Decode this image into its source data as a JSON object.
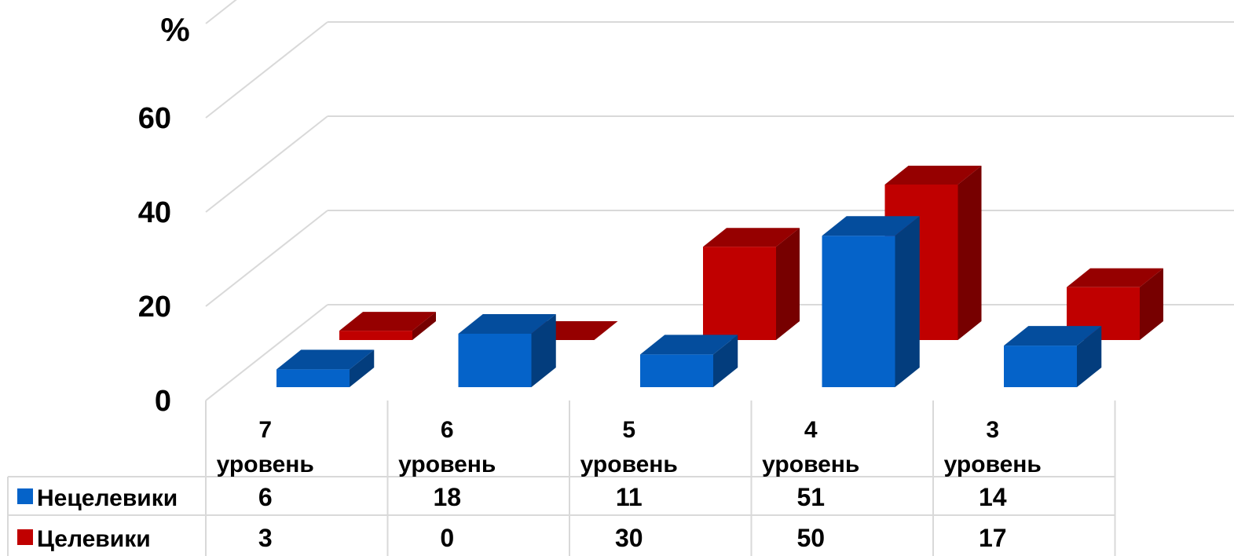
{
  "chart_data": {
    "type": "bar",
    "y_unit_label": "%",
    "categories": [
      {
        "line1": "7",
        "line2": "уровень"
      },
      {
        "line1": "6",
        "line2": "уровень"
      },
      {
        "line1": "5",
        "line2": "уровень"
      },
      {
        "line1": "4",
        "line2": "уровень"
      },
      {
        "line1": "3",
        "line2": "уровень"
      }
    ],
    "series": [
      {
        "name": "Нецелевики",
        "color": "#0563C9",
        "values": [
          6,
          18,
          11,
          51,
          14
        ]
      },
      {
        "name": "Целевики",
        "color": "#C00000",
        "values": [
          3,
          0,
          30,
          50,
          17
        ]
      }
    ],
    "yticks": [
      "0",
      "20",
      "40",
      "60"
    ],
    "ylim": [
      0,
      80
    ],
    "grid": true,
    "style": "3d-clustered-column",
    "legend": "data-table",
    "data_table": true
  }
}
